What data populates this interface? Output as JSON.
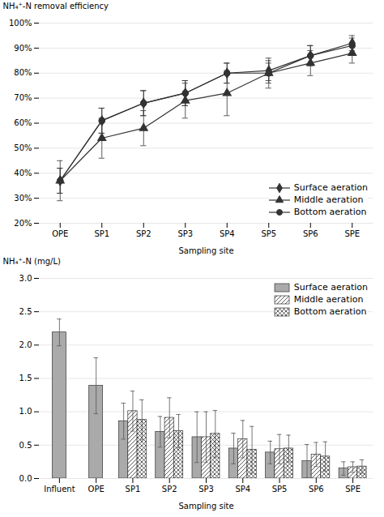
{
  "chart_data": [
    {
      "type": "line",
      "xlabel": "Sampling site",
      "ylabel": "NH₄⁺-N removal efficiency",
      "categories": [
        "OPE",
        "SP1",
        "SP2",
        "SP3",
        "SP4",
        "SP5",
        "SP6",
        "SPE"
      ],
      "ylim": [
        20,
        100
      ],
      "yticks": [
        {
          "value": 20,
          "label": "20%"
        },
        {
          "value": 30,
          "label": "30%"
        },
        {
          "value": 40,
          "label": "40%"
        },
        {
          "value": 50,
          "label": "50%"
        },
        {
          "value": 60,
          "label": "60%"
        },
        {
          "value": 70,
          "label": "70%"
        },
        {
          "value": 80,
          "label": "80%"
        },
        {
          "value": 90,
          "label": "90%"
        },
        {
          "value": 100,
          "label": "100%"
        }
      ],
      "grid": true,
      "legend": "lower right",
      "series": [
        {
          "name": "Surface aeration",
          "color": "#333333",
          "marker": "diamond",
          "values": [
            37,
            61,
            68,
            72,
            80,
            81,
            87,
            92
          ],
          "errors": [
            5,
            5,
            5,
            5,
            4,
            4,
            4,
            3
          ]
        },
        {
          "name": "Middle aeration",
          "color": "#333333",
          "marker": "triangle",
          "values": [
            37,
            54,
            58,
            69,
            72,
            80,
            84,
            88
          ],
          "errors": [
            8,
            8,
            7,
            7,
            9,
            6,
            5,
            4
          ]
        },
        {
          "name": "Bottom aeration",
          "color": "#333333",
          "marker": "circle",
          "values": [
            37,
            61,
            68,
            72,
            80,
            80,
            87,
            91
          ],
          "errors": [
            5,
            5,
            5,
            5,
            4,
            4,
            4,
            3
          ]
        }
      ]
    },
    {
      "type": "bar",
      "xlabel": "Sampling site",
      "ylabel": "NH₄⁺-N (mg/L)",
      "categories": [
        "Influent",
        "OPE",
        "SP1",
        "SP2",
        "SP3",
        "SP4",
        "SP5",
        "SP6",
        "SPE"
      ],
      "ylim": [
        0.0,
        3.0
      ],
      "yticks": [
        {
          "value": 0.0,
          "label": "0.0"
        },
        0.5,
        {
          "value": 1.0,
          "label": "1.0"
        },
        1.5,
        {
          "value": 2.0,
          "label": "2.0"
        },
        2.5,
        {
          "value": 3.0,
          "label": "3.0"
        }
      ],
      "grid": true,
      "legend": "upper right",
      "series": [
        {
          "name": "Surface aeration",
          "color": "#aaaaaa",
          "values": [
            2.19,
            1.39,
            0.86,
            0.7,
            0.62,
            0.45,
            0.39,
            0.26,
            0.15
          ],
          "errors": [
            0.2,
            0.42,
            0.27,
            0.23,
            0.38,
            0.23,
            0.17,
            0.25,
            0.1
          ]
        },
        {
          "name": "Middle aeration",
          "color": "white",
          "values": [
            null,
            null,
            1.01,
            0.91,
            0.62,
            0.59,
            0.44,
            0.36,
            0.17
          ],
          "errors": [
            null,
            null,
            0.3,
            0.3,
            0.38,
            0.28,
            0.22,
            0.18,
            0.08
          ]
        },
        {
          "name": "Bottom aeration",
          "color": "white",
          "values": [
            null,
            null,
            0.88,
            0.71,
            0.67,
            0.43,
            0.45,
            0.33,
            0.18
          ],
          "errors": [
            null,
            null,
            0.3,
            0.25,
            0.35,
            0.35,
            0.2,
            0.22,
            0.1
          ]
        }
      ]
    }
  ]
}
